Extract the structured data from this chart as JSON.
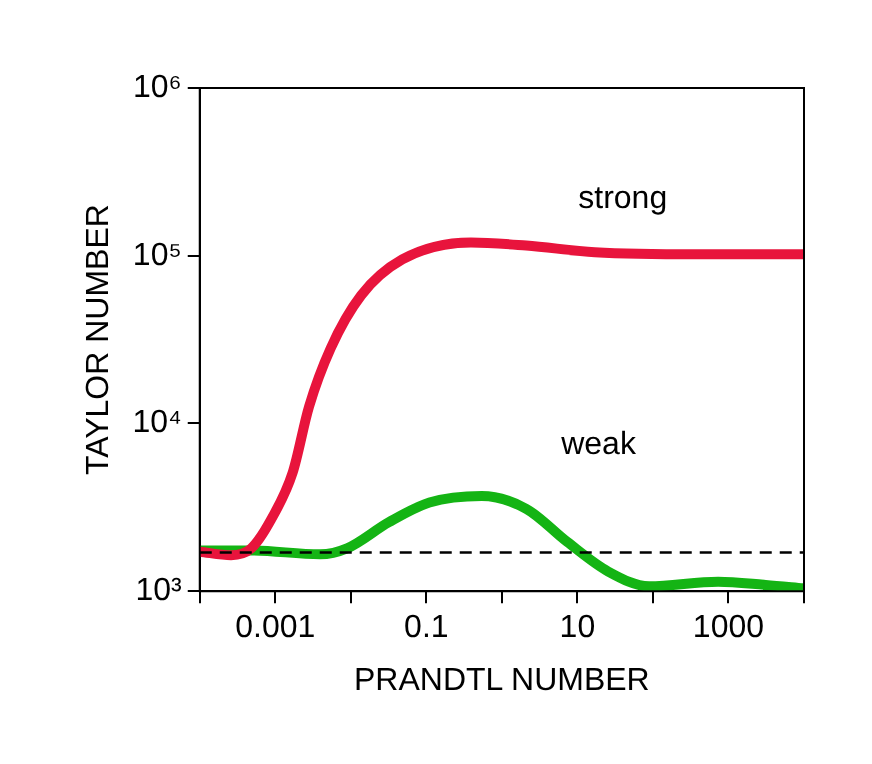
{
  "chart_data": {
    "type": "line",
    "xlabel": "PRANDTL NUMBER",
    "ylabel": "TAYLOR NUMBER",
    "log": "xy",
    "x": [
      0.0001,
      0.00026,
      0.00048,
      0.00089,
      0.0017,
      0.0028,
      0.0054,
      0.0137,
      0.048,
      0.39,
      2.1,
      17,
      390,
      10000
    ],
    "series": [
      {
        "name": "strong",
        "color": "#e8143c",
        "values": [
          1720,
          1640,
          1800,
          2700,
          5100,
          12600,
          28000,
          58000,
          95000,
          120000,
          115000,
          105000,
          102000,
          102000
        ]
      },
      {
        "name": "weak",
        "color": "#14b414",
        "x": [
          0.0001,
          0.00048,
          0.0039,
          0.0089,
          0.032,
          0.11,
          0.54,
          2.1,
          7.3,
          25.6,
          89,
          730,
          3100,
          10000
        ],
        "values": [
          1750,
          1750,
          1660,
          1800,
          2580,
          3380,
          3700,
          3100,
          1970,
          1310,
          1070,
          1140,
          1090,
          1040
        ]
      }
    ],
    "xlim": [
      0.0001,
      10000
    ],
    "xticks": [
      {
        "value": 0.0001,
        "label": null
      },
      0.001,
      {
        "value": 0.01,
        "label": null
      },
      0.1,
      {
        "value": 1,
        "label": null
      },
      10,
      {
        "value": 100,
        "label": null
      },
      1000,
      {
        "value": 10000,
        "label": null
      }
    ],
    "ylim": [
      1000,
      1000000
    ],
    "yticks": [
      {
        "value": 1000,
        "label": "10³"
      },
      {
        "value": 10000,
        "label": "10⁴"
      },
      {
        "value": 100000,
        "label": "10⁵"
      },
      {
        "value": 1000000,
        "label": "10⁶"
      }
    ],
    "ref_lines": [
      {
        "axis": "y",
        "value": 1700,
        "color": "#000000",
        "line_style": "dashed"
      }
    ],
    "grid": false,
    "legend": false,
    "marker": "none",
    "line_style": "solid"
  }
}
